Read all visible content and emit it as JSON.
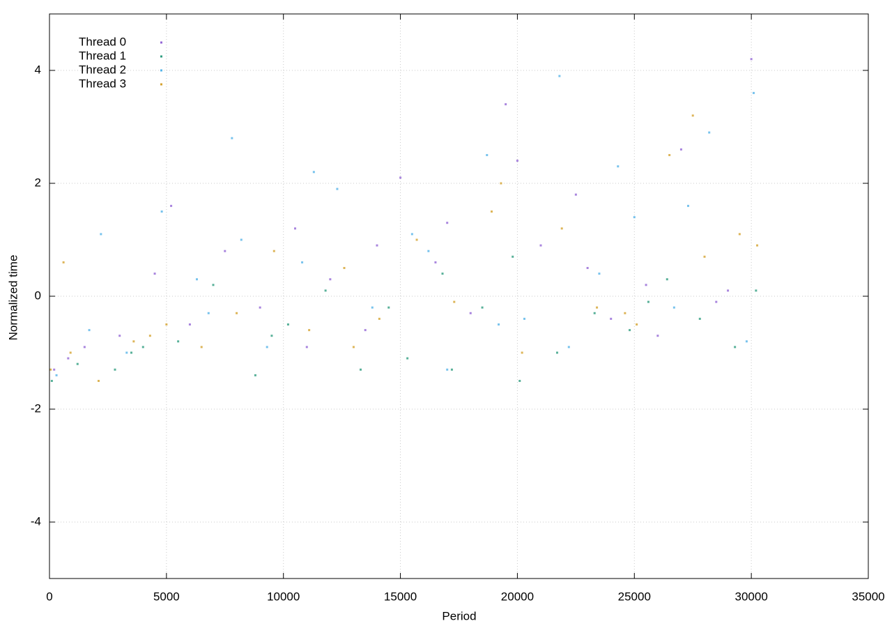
{
  "chart_data": {
    "type": "scatter",
    "x_label": "Period",
    "y_label": "Normalized time",
    "xlim": [
      0,
      35000
    ],
    "ylim": [
      -5,
      5
    ],
    "xticks": [
      0,
      5000,
      10000,
      15000,
      20000,
      25000,
      30000,
      35000
    ],
    "yticks": [
      -4,
      -2,
      0,
      2,
      4
    ],
    "grid": true,
    "legend": "top-left",
    "series": [
      {
        "name": "Thread 0",
        "color": "#9467d6",
        "x": [
          200,
          1500,
          3000,
          4500,
          6000,
          7500,
          9000,
          10500,
          12000,
          13500,
          15000,
          16500,
          18000,
          19500,
          21000,
          22500,
          24000,
          25500,
          27000,
          28500,
          30000,
          800,
          5200,
          11000,
          17000,
          23000,
          29000,
          14000,
          20000,
          26000
        ],
        "y": [
          -1.3,
          -0.9,
          -0.7,
          0.4,
          -0.5,
          0.8,
          -0.2,
          1.2,
          0.3,
          -0.6,
          2.1,
          0.6,
          -0.3,
          3.4,
          0.9,
          1.8,
          -0.4,
          0.2,
          2.6,
          -0.1,
          4.2,
          -1.1,
          1.6,
          -0.9,
          1.3,
          0.5,
          0.1,
          0.9,
          2.4,
          -0.7
        ]
      },
      {
        "name": "Thread 1",
        "color": "#2f9e80",
        "x": [
          100,
          1200,
          2800,
          4000,
          5500,
          7000,
          8800,
          10200,
          11800,
          13300,
          15300,
          16800,
          17200,
          18500,
          20100,
          21700,
          23300,
          24800,
          26400,
          27800,
          29300,
          30200,
          3500,
          9500,
          14500,
          19800,
          25600
        ],
        "y": [
          -1.5,
          -1.2,
          -1.3,
          -0.9,
          -0.8,
          0.2,
          -1.4,
          -0.5,
          0.1,
          -1.3,
          -1.1,
          0.4,
          -1.3,
          -0.2,
          -1.5,
          -1.0,
          -0.3,
          -0.6,
          0.3,
          -0.4,
          -0.9,
          0.1,
          -1.0,
          -0.7,
          -0.2,
          0.7,
          -0.1
        ]
      },
      {
        "name": "Thread 2",
        "color": "#56b4e9",
        "x": [
          300,
          1700,
          3300,
          4800,
          6300,
          7800,
          9300,
          10800,
          12300,
          13800,
          15500,
          17000,
          18700,
          20300,
          21800,
          23500,
          25000,
          26700,
          28200,
          29800,
          2200,
          6800,
          11300,
          16200,
          22200,
          27300,
          30100,
          8200,
          19200,
          24300
        ],
        "y": [
          -1.4,
          -0.6,
          -1.0,
          1.5,
          0.3,
          2.8,
          -0.9,
          0.6,
          1.9,
          -0.2,
          1.1,
          -1.3,
          2.5,
          -0.4,
          3.9,
          0.4,
          1.4,
          -0.2,
          2.9,
          -0.8,
          1.1,
          -0.3,
          2.2,
          0.8,
          -0.9,
          1.6,
          3.6,
          1.0,
          -0.5,
          2.3
        ]
      },
      {
        "name": "Thread 3",
        "color": "#d4a230",
        "x": [
          50,
          900,
          2100,
          3600,
          5000,
          6500,
          8000,
          9600,
          11100,
          12600,
          14100,
          15700,
          17300,
          18900,
          20200,
          21900,
          23400,
          25100,
          26500,
          28000,
          29500,
          30250,
          600,
          4300,
          13000,
          19300,
          24600,
          27500
        ],
        "y": [
          -1.3,
          -1.0,
          -1.5,
          -0.8,
          -0.5,
          -0.9,
          -0.3,
          0.8,
          -0.6,
          0.5,
          -0.4,
          1.0,
          -0.1,
          1.5,
          -1.0,
          1.2,
          -0.2,
          -0.5,
          2.5,
          0.7,
          1.1,
          0.9,
          0.6,
          -0.7,
          -0.9,
          2.0,
          -0.3,
          3.2
        ]
      }
    ]
  }
}
